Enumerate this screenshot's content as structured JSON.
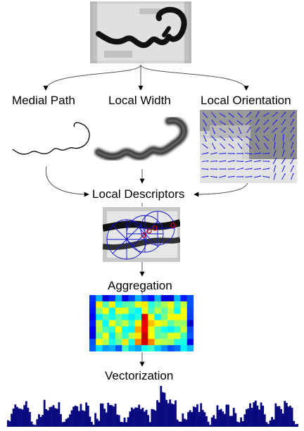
{
  "labels": {
    "medial_path": "Medial Path",
    "local_width": "Local Width",
    "local_orientation": "Local Orientation",
    "local_descriptors": "Local Descriptors",
    "aggregation": "Aggregation",
    "vectorization": "Vectorization"
  },
  "colors": {
    "arrow": "#555555",
    "orientation_arrow": "#1a1aee",
    "descriptor_circle": "#1010cc",
    "descriptor_marker": "#cc0000",
    "histogram_bar": "#0a0a80"
  },
  "icons": {
    "input_word": "handwritten-stroke-image",
    "medial_path": "skeleton-stroke-image",
    "local_width": "blurred-width-stroke-image",
    "local_orientation": "orientation-field-image",
    "local_descriptors": "polar-descriptor-image",
    "aggregation": "heatmap-image",
    "vectorization": "histogram-image"
  }
}
